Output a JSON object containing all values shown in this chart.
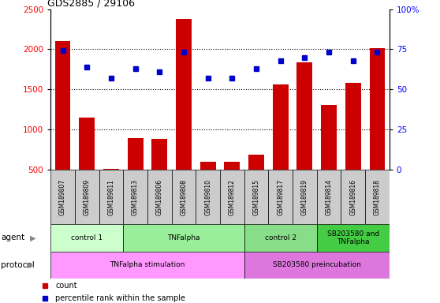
{
  "title": "GDS2885 / 29106",
  "samples": [
    "GSM189807",
    "GSM189809",
    "GSM189811",
    "GSM189813",
    "GSM189806",
    "GSM189808",
    "GSM189810",
    "GSM189812",
    "GSM189815",
    "GSM189817",
    "GSM189819",
    "GSM189814",
    "GSM189816",
    "GSM189818"
  ],
  "counts": [
    2100,
    1150,
    510,
    890,
    880,
    2380,
    600,
    600,
    690,
    1560,
    1840,
    1310,
    1580,
    2010
  ],
  "percentiles": [
    74,
    64,
    57,
    63,
    61,
    73,
    57,
    57,
    63,
    68,
    70,
    73,
    68,
    73
  ],
  "ylim_left": [
    500,
    2500
  ],
  "ylim_right": [
    0,
    100
  ],
  "yticks_left": [
    500,
    1000,
    1500,
    2000,
    2500
  ],
  "yticks_right": [
    0,
    25,
    50,
    75,
    100
  ],
  "ytick_labels_right": [
    "0",
    "25",
    "50",
    "75",
    "100%"
  ],
  "bar_color": "#CC0000",
  "dot_color": "#0000CC",
  "agent_groups": [
    {
      "label": "control 1",
      "start": 0,
      "end": 3,
      "color": "#CCFFCC"
    },
    {
      "label": "TNFalpha",
      "start": 3,
      "end": 8,
      "color": "#99EE99"
    },
    {
      "label": "control 2",
      "start": 8,
      "end": 11,
      "color": "#88DD88"
    },
    {
      "label": "SB203580 and\nTNFalpha",
      "start": 11,
      "end": 14,
      "color": "#44CC44"
    }
  ],
  "protocol_groups": [
    {
      "label": "TNFalpha stimulation",
      "start": 0,
      "end": 8,
      "color": "#FF99FF"
    },
    {
      "label": "SB203580 preincubation",
      "start": 8,
      "end": 14,
      "color": "#DD77DD"
    }
  ],
  "agent_row_label": "agent",
  "protocol_row_label": "protocol"
}
